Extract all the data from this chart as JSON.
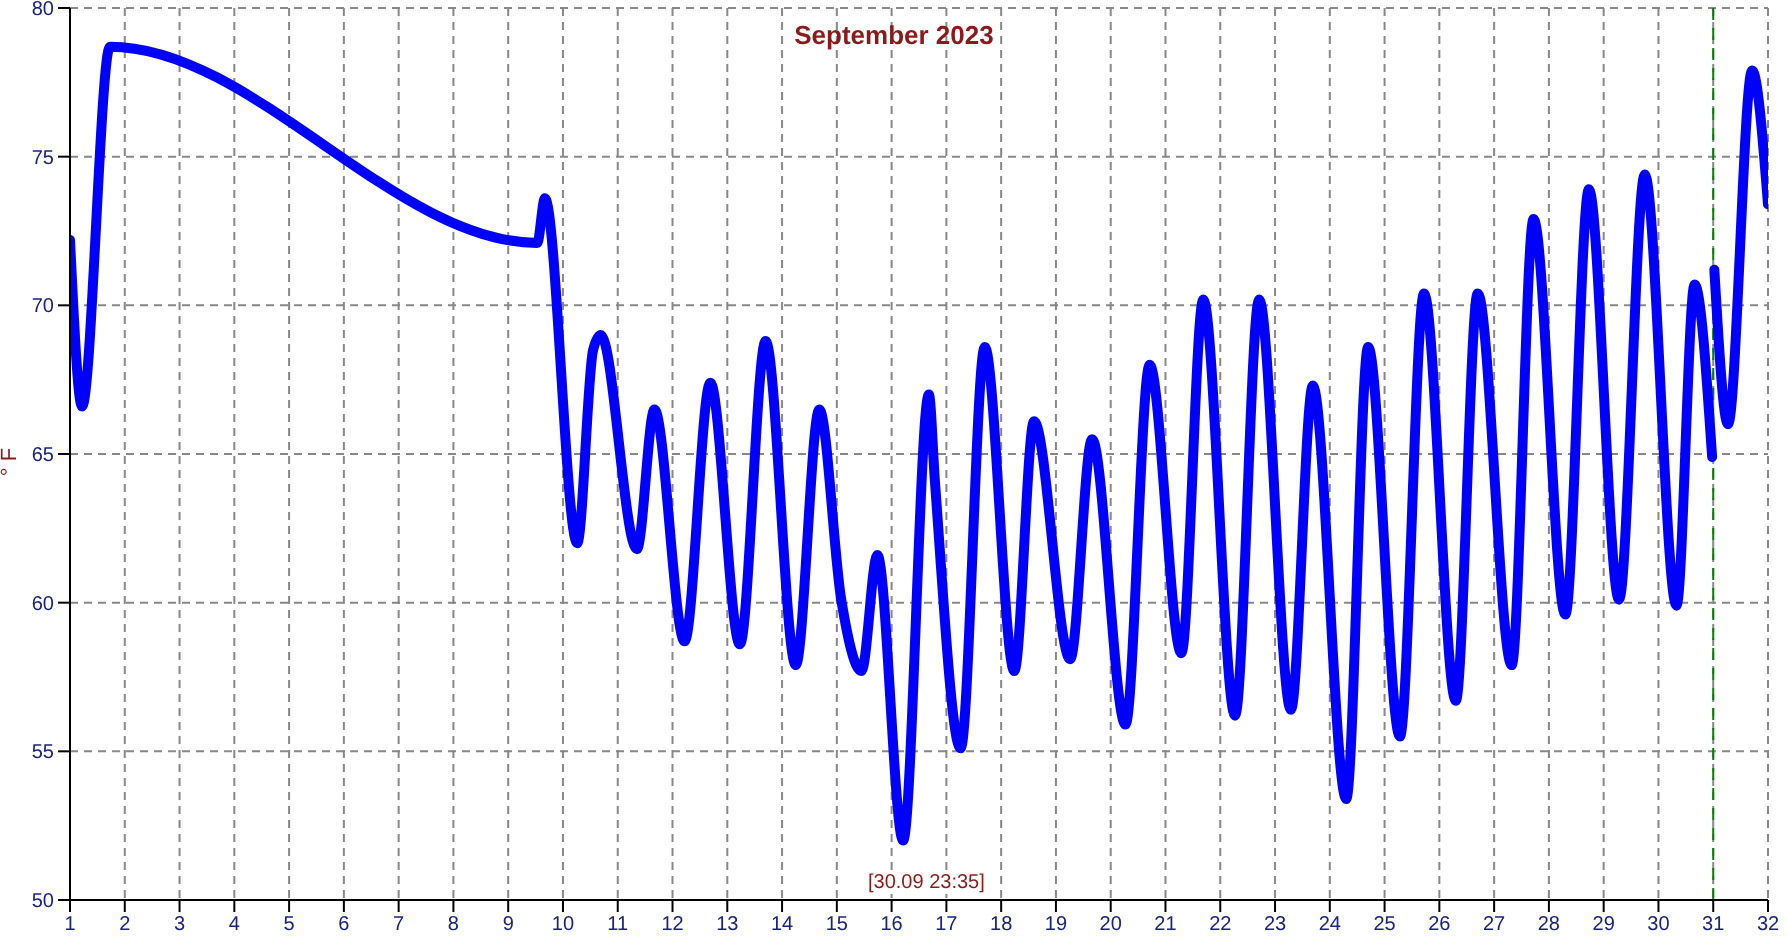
{
  "chart_data": {
    "type": "line",
    "title": "September 2023",
    "ylabel": "° F",
    "annotations": [
      "[30.09 23:35]"
    ],
    "x": [
      1,
      1.22,
      1.73,
      9.53,
      9.67,
      10.26,
      10.55,
      10.69,
      11.35,
      11.67,
      12.22,
      12.69,
      13.23,
      13.7,
      14.25,
      14.68,
      15.08,
      15.45,
      15.74,
      16.21,
      16.68,
      16.79,
      17.26,
      17.7,
      18.24,
      18.6,
      19.26,
      19.66,
      20.27,
      20.71,
      21.29,
      21.69,
      22.27,
      22.71,
      23.29,
      23.69,
      24.3,
      24.7,
      25.28,
      25.72,
      26.3,
      26.7,
      27.32,
      27.72,
      28.3,
      28.73,
      29.28,
      29.75,
      30.33,
      30.66,
      30.98,
      31,
      31.02,
      31.27,
      31.71,
      32
    ],
    "series": [
      {
        "color": "#0000ff",
        "values": [
          72.2,
          66.6,
          78.7,
          72.1,
          73.6,
          62,
          68.5,
          69,
          61.8,
          66.5,
          58.7,
          67.4,
          58.6,
          68.8,
          57.9,
          66.5,
          60.1,
          57.7,
          61.6,
          52,
          67,
          64.1,
          55.1,
          68.6,
          57.7,
          66.1,
          58.1,
          65.5,
          55.9,
          68,
          58.3,
          70.2,
          56.2,
          70.2,
          56.4,
          67.3,
          53.4,
          68.6,
          55.5,
          70.4,
          56.7,
          70.4,
          57.9,
          72.9,
          59.6,
          73.9,
          60.1,
          74.4,
          59.9,
          70.7,
          64.9,
          null,
          71.2,
          66,
          77.9,
          73.4
        ]
      }
    ],
    "xlim": [
      1,
      32
    ],
    "xticks": [
      1,
      2,
      3,
      4,
      5,
      6,
      7,
      8,
      9,
      10,
      11,
      12,
      13,
      14,
      15,
      16,
      17,
      18,
      19,
      20,
      21,
      22,
      23,
      24,
      25,
      26,
      27,
      28,
      29,
      30,
      31,
      32
    ],
    "ylim": [
      50,
      80
    ],
    "yticks": [
      50,
      55,
      60,
      65,
      70,
      75,
      80
    ],
    "ref_lines": [
      {
        "axis": "x",
        "value": 31,
        "color": "#008000",
        "line_style": "dashed"
      }
    ],
    "grid": true,
    "marker": "none",
    "line_style": "solid"
  }
}
